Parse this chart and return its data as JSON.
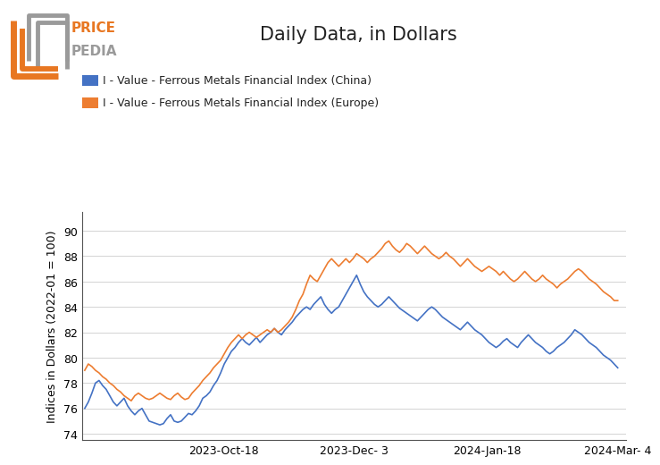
{
  "title": "Daily Data, in Dollars",
  "ylabel": "Indices in Dollars (2022-01 = 100)",
  "ylim": [
    73.5,
    91.5
  ],
  "yticks": [
    74,
    76,
    78,
    80,
    82,
    84,
    86,
    88,
    90
  ],
  "color_china": "#4472C4",
  "color_europe": "#ED7D31",
  "legend_china": "I - Value - Ferrous Metals Financial Index (China)",
  "legend_europe": "I - Value - Ferrous Metals Financial Index (Europe)",
  "x_tick_labels": [
    "2023-Oct-18",
    "2023-Dec- 3",
    "2024-Jan-18",
    "2024-Mar- 4"
  ],
  "x_tick_pos": [
    0.26,
    0.505,
    0.755,
    1.0
  ],
  "china_data": [
    76.0,
    76.5,
    77.2,
    78.0,
    78.2,
    77.8,
    77.5,
    77.0,
    76.5,
    76.2,
    76.5,
    76.8,
    76.2,
    75.8,
    75.5,
    75.8,
    76.0,
    75.5,
    75.0,
    74.9,
    74.8,
    74.7,
    74.8,
    75.2,
    75.5,
    75.0,
    74.9,
    75.0,
    75.3,
    75.6,
    75.5,
    75.8,
    76.2,
    76.8,
    77.0,
    77.3,
    77.8,
    78.2,
    78.8,
    79.5,
    80.0,
    80.5,
    80.8,
    81.2,
    81.5,
    81.2,
    81.0,
    81.3,
    81.6,
    81.2,
    81.5,
    81.8,
    82.0,
    82.3,
    82.0,
    81.8,
    82.2,
    82.5,
    82.8,
    83.2,
    83.5,
    83.8,
    84.0,
    83.8,
    84.2,
    84.5,
    84.8,
    84.2,
    83.8,
    83.5,
    83.8,
    84.0,
    84.5,
    85.0,
    85.5,
    86.0,
    86.5,
    85.8,
    85.2,
    84.8,
    84.5,
    84.2,
    84.0,
    84.2,
    84.5,
    84.8,
    84.5,
    84.2,
    83.9,
    83.7,
    83.5,
    83.3,
    83.1,
    82.9,
    83.2,
    83.5,
    83.8,
    84.0,
    83.8,
    83.5,
    83.2,
    83.0,
    82.8,
    82.6,
    82.4,
    82.2,
    82.5,
    82.8,
    82.5,
    82.2,
    82.0,
    81.8,
    81.5,
    81.2,
    81.0,
    80.8,
    81.0,
    81.3,
    81.5,
    81.2,
    81.0,
    80.8,
    81.2,
    81.5,
    81.8,
    81.5,
    81.2,
    81.0,
    80.8,
    80.5,
    80.3,
    80.5,
    80.8,
    81.0,
    81.2,
    81.5,
    81.8,
    82.2,
    82.0,
    81.8,
    81.5,
    81.2,
    81.0,
    80.8,
    80.5,
    80.2,
    80.0,
    79.8,
    79.5,
    79.2
  ],
  "europe_data": [
    79.0,
    79.5,
    79.3,
    79.0,
    78.8,
    78.5,
    78.3,
    78.0,
    77.8,
    77.5,
    77.3,
    77.0,
    76.8,
    76.6,
    77.0,
    77.2,
    77.0,
    76.8,
    76.7,
    76.8,
    77.0,
    77.2,
    77.0,
    76.8,
    76.7,
    77.0,
    77.2,
    76.9,
    76.7,
    76.8,
    77.2,
    77.5,
    77.8,
    78.2,
    78.5,
    78.8,
    79.2,
    79.5,
    79.8,
    80.3,
    80.8,
    81.2,
    81.5,
    81.8,
    81.5,
    81.8,
    82.0,
    81.8,
    81.6,
    81.8,
    82.0,
    82.2,
    82.0,
    82.3,
    82.0,
    82.2,
    82.5,
    82.8,
    83.2,
    83.8,
    84.5,
    85.0,
    85.8,
    86.5,
    86.2,
    86.0,
    86.5,
    87.0,
    87.5,
    87.8,
    87.5,
    87.2,
    87.5,
    87.8,
    87.5,
    87.8,
    88.2,
    88.0,
    87.8,
    87.5,
    87.8,
    88.0,
    88.3,
    88.6,
    89.0,
    89.2,
    88.8,
    88.5,
    88.3,
    88.6,
    89.0,
    88.8,
    88.5,
    88.2,
    88.5,
    88.8,
    88.5,
    88.2,
    88.0,
    87.8,
    88.0,
    88.3,
    88.0,
    87.8,
    87.5,
    87.2,
    87.5,
    87.8,
    87.5,
    87.2,
    87.0,
    86.8,
    87.0,
    87.2,
    87.0,
    86.8,
    86.5,
    86.8,
    86.5,
    86.2,
    86.0,
    86.2,
    86.5,
    86.8,
    86.5,
    86.2,
    86.0,
    86.2,
    86.5,
    86.2,
    86.0,
    85.8,
    85.5,
    85.8,
    86.0,
    86.2,
    86.5,
    86.8,
    87.0,
    86.8,
    86.5,
    86.2,
    86.0,
    85.8,
    85.5,
    85.2,
    85.0,
    84.8,
    84.5,
    84.5
  ],
  "bg_color": "#ffffff",
  "logo_orange": "#E87722",
  "logo_gray": "#9a9a9a"
}
